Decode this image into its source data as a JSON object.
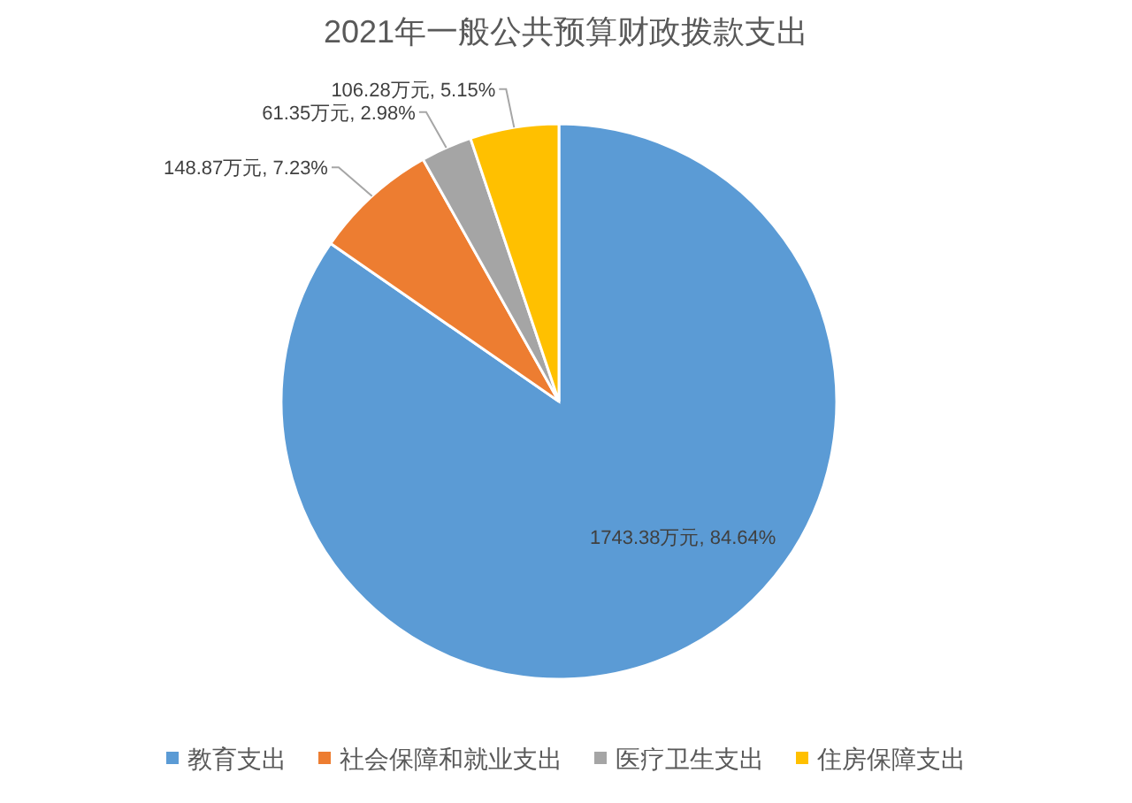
{
  "chart_data": {
    "type": "pie",
    "title": "2021年一般公共预算财政拨款支出",
    "categories": [
      "教育支出",
      "社会保障和就业支出",
      "医疗卫生支出",
      "住房保障支出"
    ],
    "values": [
      1743.38,
      148.87,
      61.35,
      106.28
    ],
    "colors": [
      "#5b9bd5",
      "#ed7d31",
      "#a5a5a5",
      "#ffc000"
    ],
    "value_labels": [
      "1743.38万元, 84.64%",
      "148.87万元, 7.23%",
      "61.35万元, 2.98%",
      "106.28万元, 5.15%"
    ],
    "legend": "bottom"
  }
}
